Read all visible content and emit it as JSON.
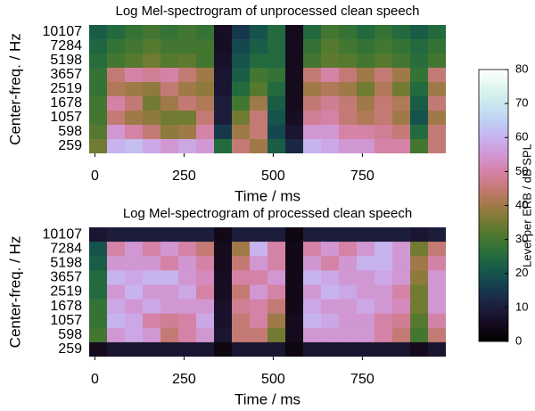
{
  "chart_data": [
    {
      "type": "heatmap",
      "title": "Log Mel-spectrogram of unprocessed clean speech",
      "xlabel": "Time / ms",
      "ylabel": "Center-freq. / Hz",
      "x": [
        9,
        59,
        109,
        159,
        209,
        259,
        309,
        359,
        409,
        459,
        509,
        559,
        609,
        659,
        709,
        759,
        809,
        859,
        909,
        959
      ],
      "categories": [
        "10107",
        "7284",
        "5198",
        "3657",
        "2519",
        "1678",
        "1057",
        "598",
        "259"
      ],
      "values": [
        [
          22,
          25,
          28,
          30,
          28,
          30,
          28,
          6,
          15,
          20,
          25,
          5,
          25,
          30,
          28,
          25,
          28,
          25,
          22,
          25
        ],
        [
          24,
          28,
          30,
          32,
          30,
          30,
          30,
          6,
          18,
          22,
          25,
          5,
          28,
          32,
          30,
          28,
          30,
          28,
          25,
          28
        ],
        [
          26,
          30,
          32,
          35,
          32,
          33,
          30,
          7,
          20,
          25,
          25,
          5,
          30,
          33,
          32,
          30,
          32,
          30,
          26,
          30
        ],
        [
          28,
          45,
          50,
          48,
          50,
          45,
          40,
          8,
          22,
          30,
          28,
          5,
          45,
          50,
          45,
          40,
          45,
          40,
          28,
          45
        ],
        [
          28,
          42,
          40,
          38,
          45,
          40,
          38,
          8,
          25,
          32,
          25,
          5,
          40,
          42,
          40,
          35,
          42,
          35,
          25,
          40
        ],
        [
          30,
          50,
          45,
          35,
          40,
          45,
          42,
          10,
          30,
          40,
          22,
          5,
          45,
          48,
          45,
          40,
          45,
          42,
          22,
          45
        ],
        [
          30,
          45,
          40,
          38,
          35,
          35,
          45,
          10,
          35,
          45,
          20,
          6,
          48,
          50,
          45,
          42,
          45,
          40,
          20,
          40
        ],
        [
          32,
          55,
          50,
          45,
          38,
          40,
          50,
          15,
          40,
          45,
          18,
          8,
          55,
          55,
          50,
          50,
          48,
          45,
          25,
          45
        ],
        [
          35,
          60,
          62,
          58,
          55,
          58,
          55,
          25,
          45,
          40,
          22,
          12,
          60,
          58,
          55,
          55,
          50,
          50,
          30,
          45
        ]
      ],
      "xlim": [
        -16,
        984
      ],
      "xticks": [
        0,
        250,
        500,
        750
      ]
    },
    {
      "type": "heatmap",
      "title": "Log Mel-spectrogram of processed clean speech",
      "xlabel": "Time / ms",
      "ylabel": "Center-freq. / Hz",
      "x": [
        9,
        59,
        109,
        159,
        209,
        259,
        309,
        359,
        409,
        459,
        509,
        559,
        609,
        659,
        709,
        759,
        809,
        859,
        909,
        959
      ],
      "categories": [
        "10107",
        "7284",
        "5198",
        "3657",
        "2519",
        "1678",
        "1057",
        "598",
        "259"
      ],
      "values": [
        [
          8,
          10,
          10,
          10,
          10,
          10,
          10,
          4,
          10,
          10,
          10,
          3,
          10,
          10,
          10,
          10,
          10,
          10,
          8,
          10
        ],
        [
          20,
          50,
          55,
          50,
          55,
          50,
          45,
          5,
          40,
          60,
          50,
          4,
          50,
          55,
          50,
          55,
          60,
          55,
          35,
          45
        ],
        [
          22,
          55,
          55,
          55,
          50,
          55,
          50,
          5,
          45,
          55,
          50,
          4,
          55,
          50,
          55,
          60,
          60,
          55,
          40,
          50
        ],
        [
          25,
          60,
          58,
          60,
          60,
          55,
          52,
          6,
          50,
          50,
          55,
          4,
          60,
          58,
          55,
          55,
          58,
          55,
          38,
          55
        ],
        [
          25,
          55,
          60,
          55,
          55,
          58,
          50,
          6,
          45,
          55,
          50,
          4,
          55,
          60,
          58,
          55,
          55,
          50,
          35,
          55
        ],
        [
          28,
          58,
          55,
          58,
          55,
          55,
          55,
          7,
          48,
          50,
          45,
          4,
          58,
          55,
          55,
          58,
          55,
          52,
          35,
          55
        ],
        [
          28,
          60,
          58,
          50,
          48,
          50,
          58,
          7,
          45,
          50,
          40,
          5,
          60,
          58,
          55,
          55,
          50,
          48,
          32,
          50
        ],
        [
          30,
          55,
          58,
          55,
          45,
          50,
          55,
          8,
          45,
          45,
          35,
          5,
          55,
          55,
          55,
          55,
          50,
          45,
          30,
          45
        ],
        [
          5,
          8,
          8,
          8,
          8,
          8,
          8,
          3,
          8,
          8,
          8,
          3,
          8,
          8,
          8,
          8,
          8,
          8,
          5,
          8
        ]
      ],
      "xlim": [
        -16,
        984
      ],
      "xticks": [
        0,
        250,
        500,
        750
      ]
    }
  ],
  "colorbar": {
    "label": "Level per ERB / dB SPL",
    "lim": [
      0,
      80
    ],
    "ticks": [
      0,
      10,
      20,
      30,
      40,
      50,
      60,
      70,
      80
    ],
    "colormap": "cubehelix"
  }
}
